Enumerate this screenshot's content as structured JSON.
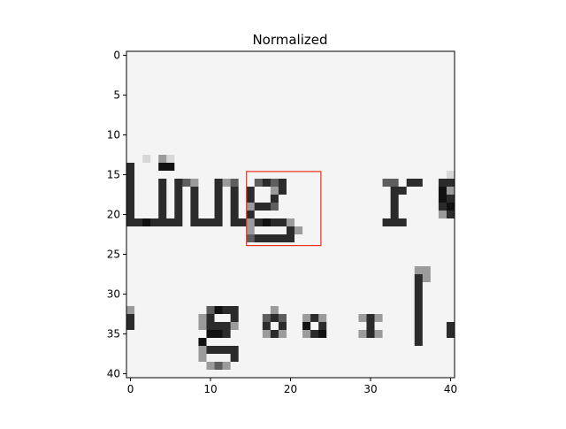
{
  "chart_data": {
    "type": "heatmap",
    "title": "Normalized",
    "colormap": "gray",
    "grid": "off",
    "x_domain": [
      -0.5,
      40.5
    ],
    "y_domain": [
      -0.5,
      40.5
    ],
    "x_ticks": [
      0,
      10,
      20,
      30,
      40
    ],
    "x_tick_labels": [
      "0",
      "10",
      "20",
      "30",
      "40"
    ],
    "y_ticks": [
      0,
      5,
      10,
      15,
      20,
      25,
      30,
      35,
      40
    ],
    "y_tick_labels": [
      "0",
      "5",
      "10",
      "15",
      "20",
      "25",
      "30",
      "35",
      "40"
    ],
    "rows": [
      "wwwwwwwwwwwwwwwwwwwwwwwwwwwwwwwwwwwwwwwww",
      "wwwwwwwwwwwwwwwwwwwwwwwwwwwwwwwwwwwwwwwww",
      "wwwwwwwwwwwwwwwwwwwwwwwwwwwwwwwwwwwwwwwww",
      "wwwwwwwwwwwwwwwwwwwwwwwwwwwwwwwwwwwwwwwww",
      "wwwwwwwwwwwwwwwwwwwwwwwwwwwwwwwwwwwwwwwww",
      "wwwwwwwwwwwwwwwwwwwwwwwwwwwwwwwwwwwwwwwww",
      "wwwwwwwwwwwwwwwwwwwwwwwwwwwwwwwwwwwwwwwww",
      "wwwwwwwwwwwwwwwwwwwwwwwwwwwwwwwwwwwwwwwww",
      "wwwwwwwwwwwwwwwwwwwwwwwwwwwwwwwwwwwwwwwww",
      "wwwwwwwwwwwwwwwwwwwwwwwwwwwwwwwwwwwwwwwww",
      "wwwwwwwwwwwwwwwwwwwwwwwwwwwwwwwwwwwwwwwww",
      "wwwwwwwwwwwwwwwwwwwwwwwwwwwwwwwwwwwwwwwww",
      "wwwwwwwwwwwwwwwwwwwwwwwwwwwwwwwwwwwwwwwww",
      "ww.wm.wwwwwwwwwwwwwwwwwwwwwwwwwwwwwwwwwww",
      "xwwwkkwwwwwwwwwwwwwwwwwwwwwwwwwwwwwwwwwww",
      "xwwwwwwwwwwwwwwwwwwwwwwwwwwwwwwwwwwwwwww.",
      "xwwwxwxdmwwxmdwwdxdxwwwwwwwwwwwwddwxxwwxx",
      "xwwwxwxwxwwxwxwxwwmxwwwwwwwwwwwwwxxwwwwkm",
      "xwwwxwxwxwwxwxwxwwxwwwwwwwwwwwwwwxwwwwwkx",
      "xwwwxwxwxwwxwxwmxxdwwwwwwwwwwwwwwxwwwwwxk",
      "xwwwxwxwxwwxwxwxwwwwwwwwwwwwwwwwwxwwwwwmx",
      "xxkxxxxwxxxxwxxmxkxxmwwwwwwwwwwwxxxwwwwww",
      "wwwwwwwwwwwwwwwmwwwwxmwwwwwwwwwwwwwwwwwww",
      "wwwwwwwwwwwwwwwdxxxxxwwwwwwwwwwwwwwwwwwww",
      "wwwwwwwwwwwwwwwwwwwwwwwwwwwwwwwwwwwwwwwww",
      "wwwwwwwwwwwwwwwwwwwwwwwwwwwwwwwwwwwwwwwww",
      "wwwwwwwwwwwwwwwwwwwwwwwwwwwwwwwwwwwwwwwww",
      "wwwwwwwwwwwwwwwwwwwwwwwwwwwwwwwwwwwwmmwww",
      "wwwwwwwwwwwwwwwwwwwwwwwwwwwwwwwwwwwwxmwww",
      "wwwwwwwwwwwwwwwwwwwwwwwwwwwwwwwwwwwwxwwww",
      "wwwwwwwwwwwwwwwwwwwwwwwwwwwwwwwwwwwwxwwww",
      "wwwwwwwwwwwwwwwwwwwwwwwwwwwwwwwwwwwwxwwww",
      "mwwwwwwwwwdkxxwwwwmwwwwwwwwwwwwwwwwwxwwww",
      "xwwwwwwwwmxwwxwwwdxdwwmxmwwwwmxmwwwwxwwww",
      "xwwwwwwwwmxxxmwwwxwxwwkwxwwwwwxwwwwwxwwwx",
      "wwwwwwwwwwkkxwwwwmxmwwmxkwwwwmxmwwwwxwwwx",
      "wwwwwwwwwkwwwwwwwwwwwwwwwwwwwwwwwwwwxwwww",
      "wwwwwwwwwmxxxxwwwwwwwwwwwwwwwwwwwwwwwwwww",
      "wwwwwwwwwmwwwxwwwwwwwwwwwwwwwwwwwwwwwwwww",
      "wwwwwwwwwwmdmwwwwwwwwwwwwwwwwwwwwwwwwwwww",
      "wwwwwwwwwwwwwwwwwwwwwwwwwwwwwwwwwwwwwwwww"
    ],
    "palette": {
      "w": "#f4f4f4",
      ".": "#d7d7d7",
      "m": "#9b9b9b",
      "d": "#5e5e5e",
      "x": "#2b2b2b",
      "k": "#111111"
    },
    "rectangle": {
      "x0": 14.5,
      "y0": 14.6,
      "x1": 23.8,
      "y1": 23.9,
      "color": "#e8301a"
    }
  }
}
